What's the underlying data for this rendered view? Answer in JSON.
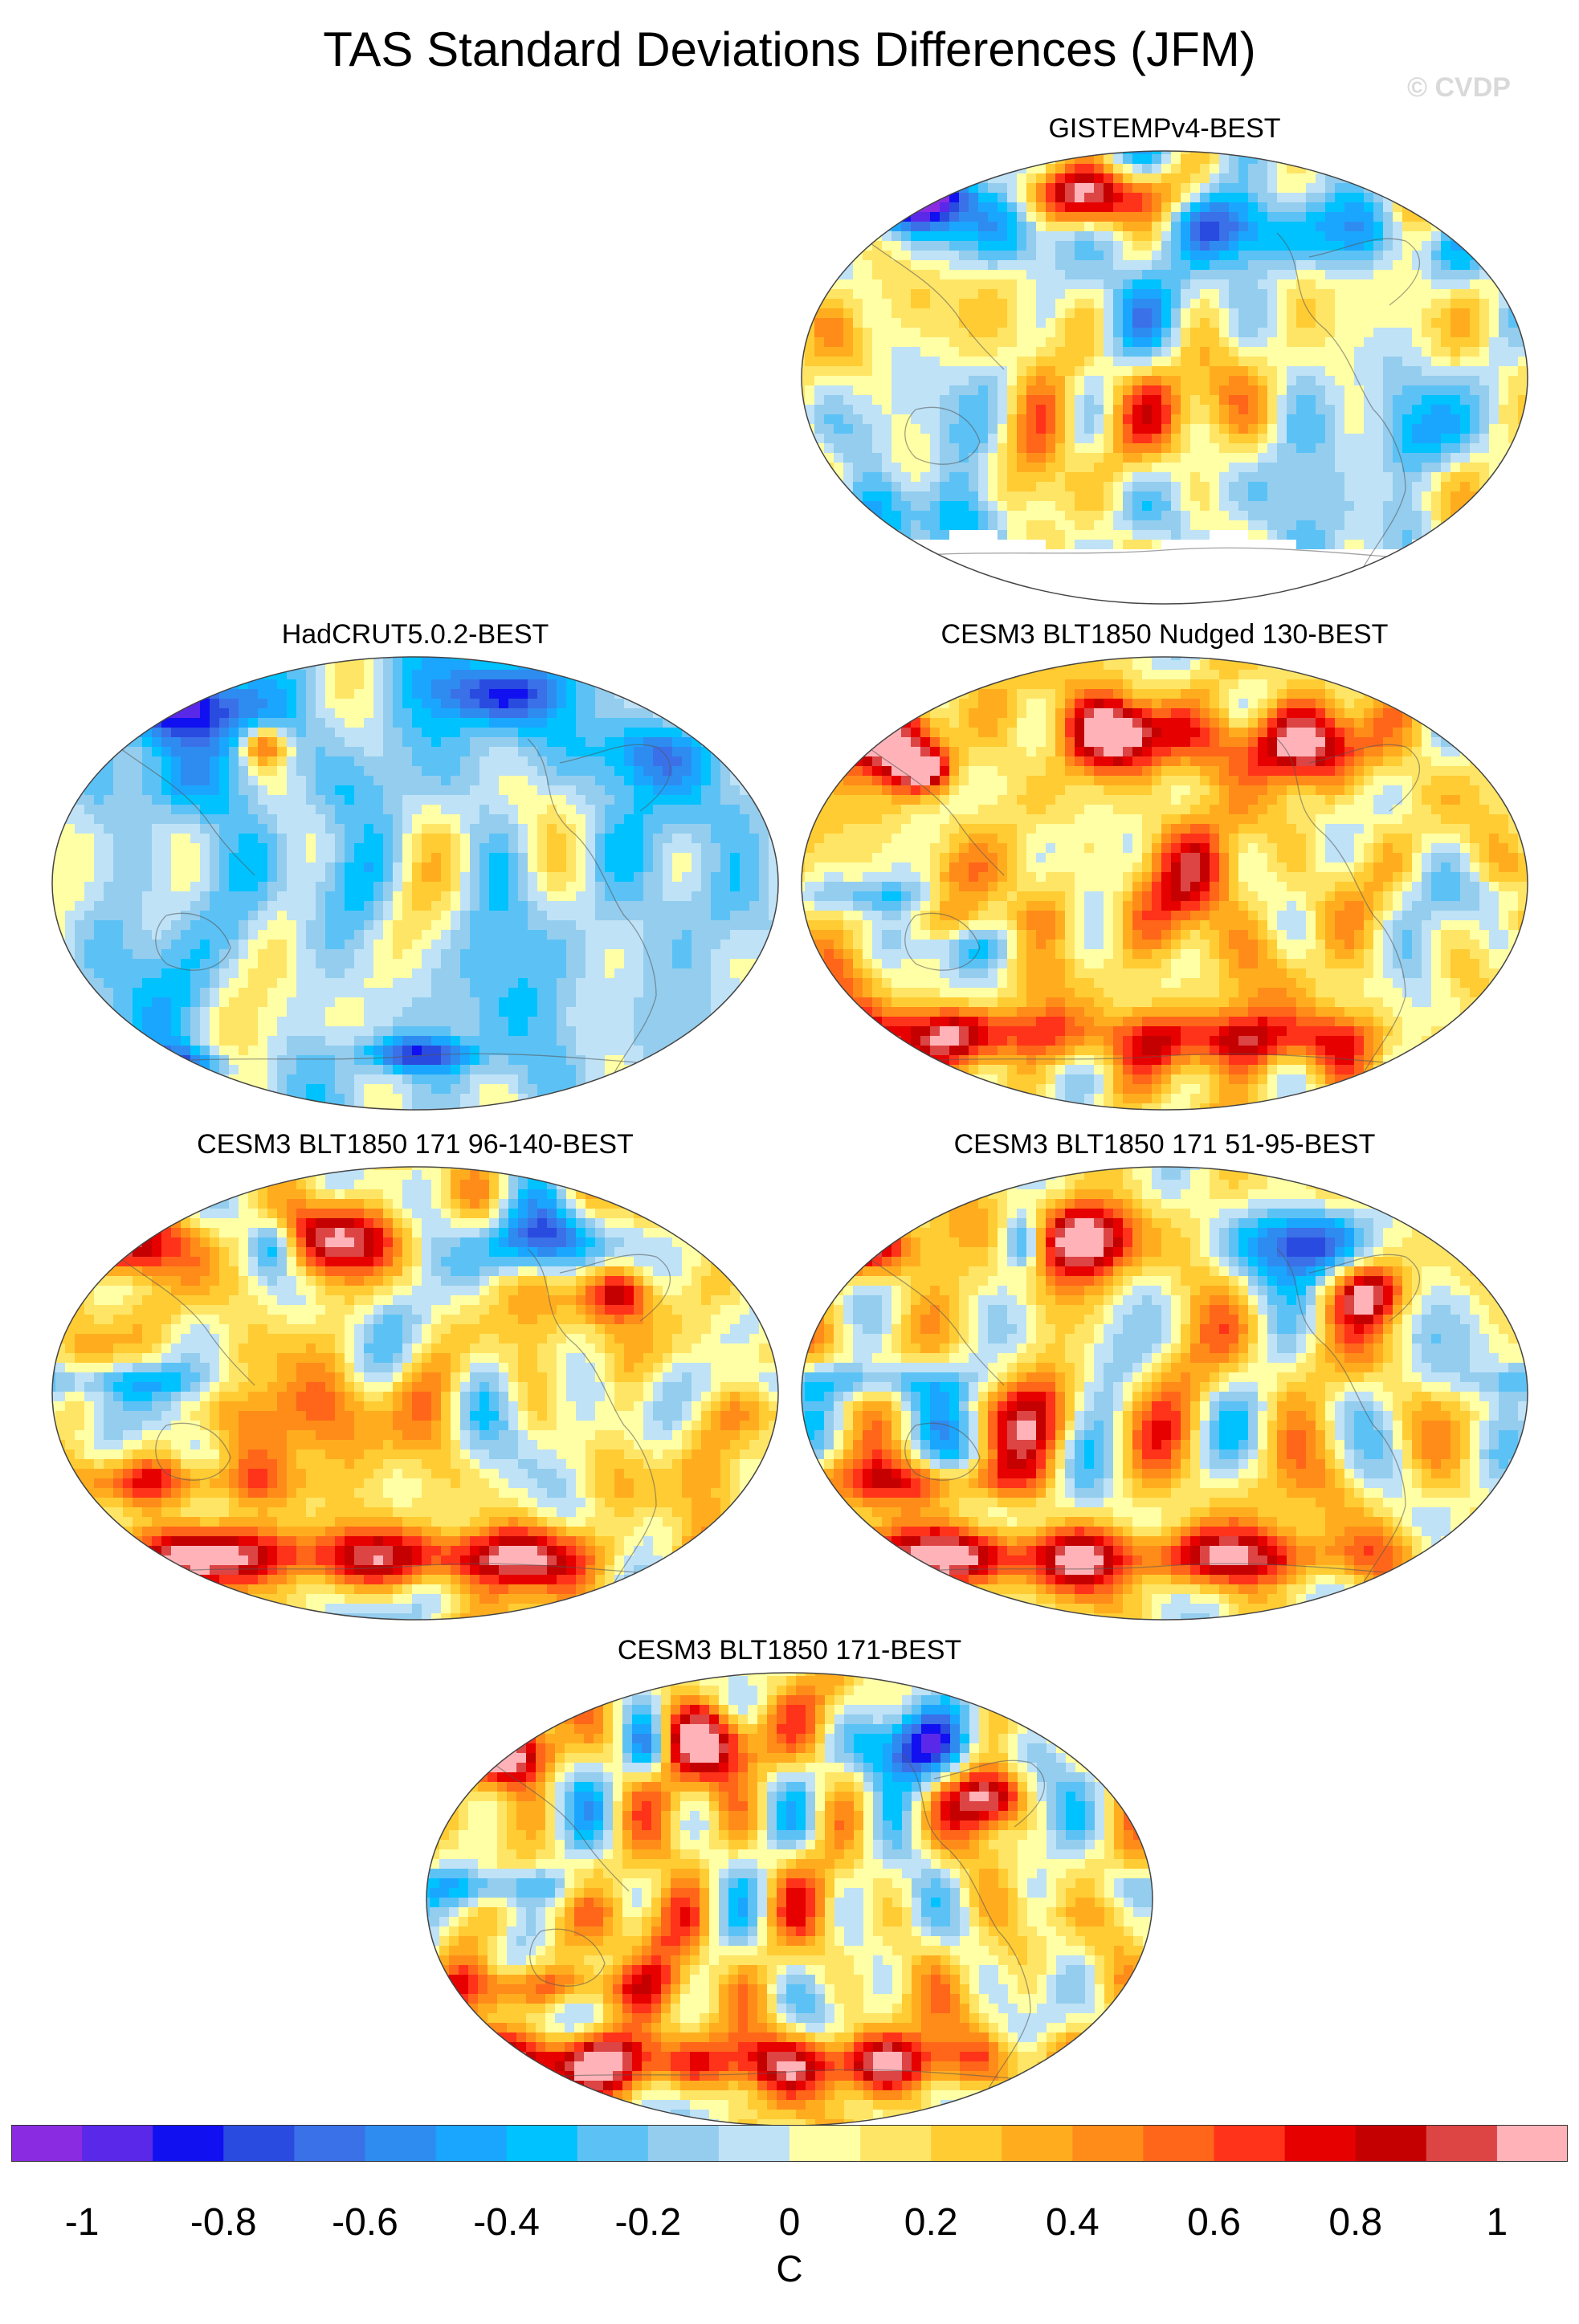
{
  "title": "TAS Standard Deviations Differences (JFM)",
  "watermark": "© CVDP",
  "panels": [
    {
      "title": "GISTEMPv4-BEST",
      "scheme": "mixed",
      "seed": 11,
      "blobs": [
        [
          -145,
          72,
          22,
          9,
          -0.8
        ],
        [
          -115,
          72,
          24,
          8,
          -0.7
        ],
        [
          150,
          68,
          30,
          10,
          0.9
        ],
        [
          -90,
          60,
          18,
          12,
          -0.5
        ],
        [
          -40,
          72,
          30,
          8,
          1.0
        ],
        [
          100,
          62,
          30,
          12,
          -0.5
        ],
        [
          60,
          55,
          25,
          10,
          -0.3
        ],
        [
          20,
          62,
          18,
          10,
          -0.6
        ],
        [
          -150,
          -55,
          60,
          10,
          -0.3
        ],
        [
          -60,
          -20,
          15,
          20,
          0.5
        ],
        [
          20,
          -10,
          20,
          15,
          0.4
        ],
        [
          -165,
          10,
          20,
          15,
          0.2
        ],
        [
          130,
          -25,
          20,
          12,
          -0.3
        ]
      ],
      "noise": 0.22,
      "bias": 0.0,
      "antarctic_blank": true,
      "arctic_pink": [
        150,
        -60
      ]
    },
    {
      "title": "HadCRUT5.0.2-BEST",
      "scheme": "blue",
      "seed": 23,
      "blobs": [
        [
          -165,
          78,
          30,
          8,
          -0.9
        ],
        [
          -110,
          68,
          30,
          10,
          -0.7
        ],
        [
          40,
          75,
          20,
          8,
          -0.6
        ],
        [
          -75,
          55,
          8,
          6,
          0.7
        ],
        [
          -120,
          40,
          15,
          10,
          -0.4
        ],
        [
          120,
          52,
          25,
          10,
          -0.5
        ],
        [
          0,
          -68,
          20,
          5,
          -0.7
        ],
        [
          -120,
          -72,
          20,
          5,
          -0.6
        ],
        [
          -30,
          20,
          15,
          10,
          0.2
        ],
        [
          150,
          10,
          15,
          10,
          0.2
        ]
      ],
      "noise": 0.16,
      "bias": -0.12,
      "antarctic_blank": false,
      "arctic_pink": []
    },
    {
      "title": "CESM3 BLT1850 Nudged 130-BEST",
      "scheme": "warm",
      "seed": 37,
      "blobs": [
        [
          -150,
          58,
          25,
          10,
          1.0
        ],
        [
          -20,
          60,
          20,
          10,
          1.0
        ],
        [
          60,
          55,
          30,
          10,
          0.8
        ],
        [
          -120,
          45,
          10,
          6,
          1.0
        ],
        [
          -110,
          -60,
          50,
          8,
          0.8
        ],
        [
          40,
          -62,
          40,
          8,
          0.7
        ],
        [
          -60,
          -10,
          15,
          15,
          0.5
        ],
        [
          20,
          0,
          15,
          15,
          0.4
        ],
        [
          -150,
          -5,
          40,
          5,
          -0.3
        ],
        [
          -100,
          -25,
          30,
          6,
          -0.3
        ]
      ],
      "noise": 0.22,
      "bias": 0.15,
      "antarctic_blank": false,
      "arctic_pink": [
        -20,
        -150
      ]
    },
    {
      "title": "CESM3 BLT1850 171 96-140-BEST",
      "scheme": "warm",
      "seed": 41,
      "blobs": [
        [
          60,
          60,
          25,
          10,
          -0.9
        ],
        [
          -150,
          58,
          20,
          8,
          1.0
        ],
        [
          -40,
          62,
          20,
          10,
          1.0
        ],
        [
          100,
          40,
          12,
          8,
          0.9
        ],
        [
          -110,
          -65,
          60,
          8,
          0.9
        ],
        [
          40,
          -65,
          40,
          8,
          0.8
        ],
        [
          -150,
          5,
          40,
          5,
          -0.4
        ],
        [
          -120,
          -35,
          40,
          6,
          0.5
        ],
        [
          -60,
          -10,
          15,
          15,
          0.5
        ],
        [
          -70,
          60,
          8,
          8,
          -0.6
        ]
      ],
      "noise": 0.24,
      "bias": 0.12,
      "antarctic_blank": false,
      "arctic_pink": [
        -40,
        -150
      ]
    },
    {
      "title": "CESM3 BLT1850 171 51-95-BEST",
      "scheme": "warm",
      "seed": 53,
      "blobs": [
        [
          70,
          60,
          22,
          10,
          -0.8
        ],
        [
          -150,
          58,
          20,
          8,
          1.0
        ],
        [
          -40,
          62,
          20,
          10,
          1.0
        ],
        [
          100,
          40,
          12,
          8,
          0.8
        ],
        [
          -110,
          -65,
          60,
          8,
          0.9
        ],
        [
          40,
          -65,
          40,
          8,
          0.8
        ],
        [
          -150,
          5,
          40,
          5,
          -0.4
        ],
        [
          -120,
          -35,
          40,
          6,
          0.5
        ],
        [
          -60,
          -10,
          15,
          15,
          0.5
        ],
        [
          -70,
          60,
          8,
          8,
          -0.7
        ]
      ],
      "noise": 0.24,
      "bias": 0.12,
      "antarctic_blank": false,
      "arctic_pink": [
        -40,
        -150
      ]
    },
    {
      "title": "CESM3 BLT1850 171-BEST",
      "scheme": "warm",
      "seed": 67,
      "blobs": [
        [
          65,
          60,
          24,
          10,
          -0.8
        ],
        [
          -150,
          58,
          22,
          8,
          1.0
        ],
        [
          -40,
          62,
          20,
          10,
          1.0
        ],
        [
          100,
          40,
          12,
          8,
          0.9
        ],
        [
          -110,
          -65,
          60,
          8,
          0.9
        ],
        [
          40,
          -65,
          40,
          8,
          0.8
        ],
        [
          -150,
          5,
          40,
          5,
          -0.4
        ],
        [
          -120,
          -35,
          40,
          6,
          0.5
        ],
        [
          -60,
          -10,
          15,
          15,
          0.5
        ],
        [
          -70,
          60,
          8,
          8,
          -0.7
        ]
      ],
      "noise": 0.23,
      "bias": 0.12,
      "antarctic_blank": false,
      "arctic_pink": [
        -40,
        -150
      ]
    }
  ],
  "colorbar": {
    "colors": [
      "#8a2be2",
      "#5a28e8",
      "#1010f0",
      "#2a4be0",
      "#3a70e8",
      "#2e8cf0",
      "#1aa6ff",
      "#00c2ff",
      "#5cc2f5",
      "#94cdee",
      "#bfe2f7",
      "#ffffa6",
      "#ffe566",
      "#ffcc33",
      "#ffad1f",
      "#ff8c19",
      "#ff6619",
      "#ff3319",
      "#e60000",
      "#c40000",
      "#dd4444",
      "#ffb3b8"
    ],
    "labels": [
      "-1",
      "-0.8",
      "-0.6",
      "-0.4",
      "-0.2",
      "0",
      "0.2",
      "0.4",
      "0.6",
      "0.8",
      "1"
    ],
    "unit": "C"
  }
}
